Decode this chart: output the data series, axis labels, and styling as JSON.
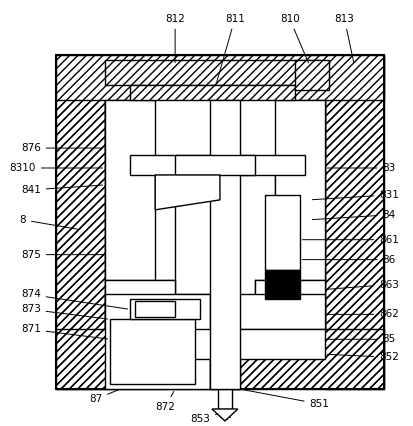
{
  "bg_color": "#ffffff",
  "line_color": "#000000",
  "fig_width": 4.13,
  "fig_height": 4.26,
  "dpi": 100
}
